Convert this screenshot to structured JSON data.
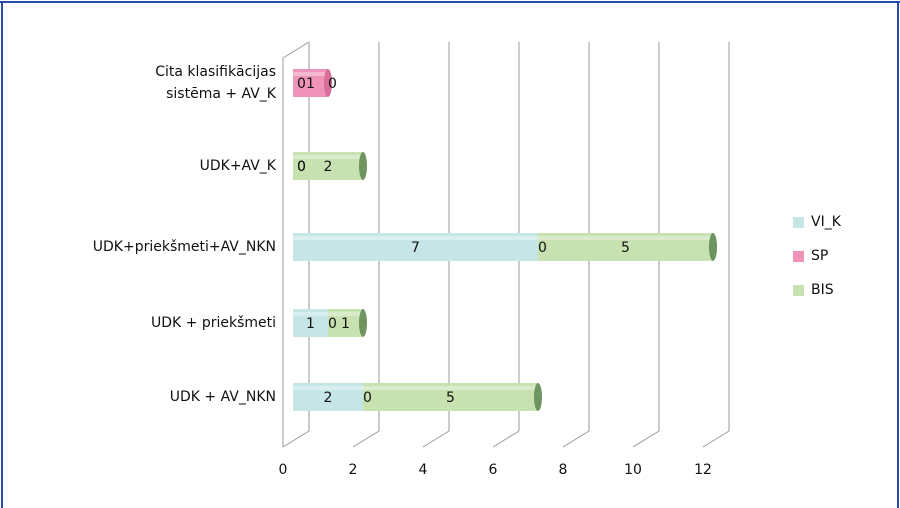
{
  "chart_data": {
    "type": "bar",
    "orientation": "horizontal",
    "stacked": true,
    "categories": [
      "Cita klasifikācijas\nsistēma + AV_K",
      "UDK+AV_K",
      "UDK+priekšmeti+AV_NKN",
      "UDK + priekšmeti",
      "UDK + AV_NKN"
    ],
    "series": [
      {
        "name": "VI_K",
        "values": [
          0,
          0,
          7,
          1,
          2
        ],
        "color": "#c5e5e6",
        "cap": "#a8d3d4"
      },
      {
        "name": "SP",
        "values": [
          1,
          0,
          0,
          0,
          0
        ],
        "color": "#ef93b8",
        "cap": "#d86d98"
      },
      {
        "name": "BIS",
        "values": [
          0,
          2,
          5,
          1,
          5
        ],
        "color": "#c7e1b0",
        "cap": "#6e9460"
      }
    ],
    "xlim": [
      0,
      12
    ],
    "xticks": [
      "0",
      "2",
      "4",
      "6",
      "8",
      "10",
      "12"
    ],
    "grid": true,
    "legend_position": "right"
  },
  "colors": {
    "frame_border": "#2a4aa8",
    "grid": "#9a9a9a"
  }
}
